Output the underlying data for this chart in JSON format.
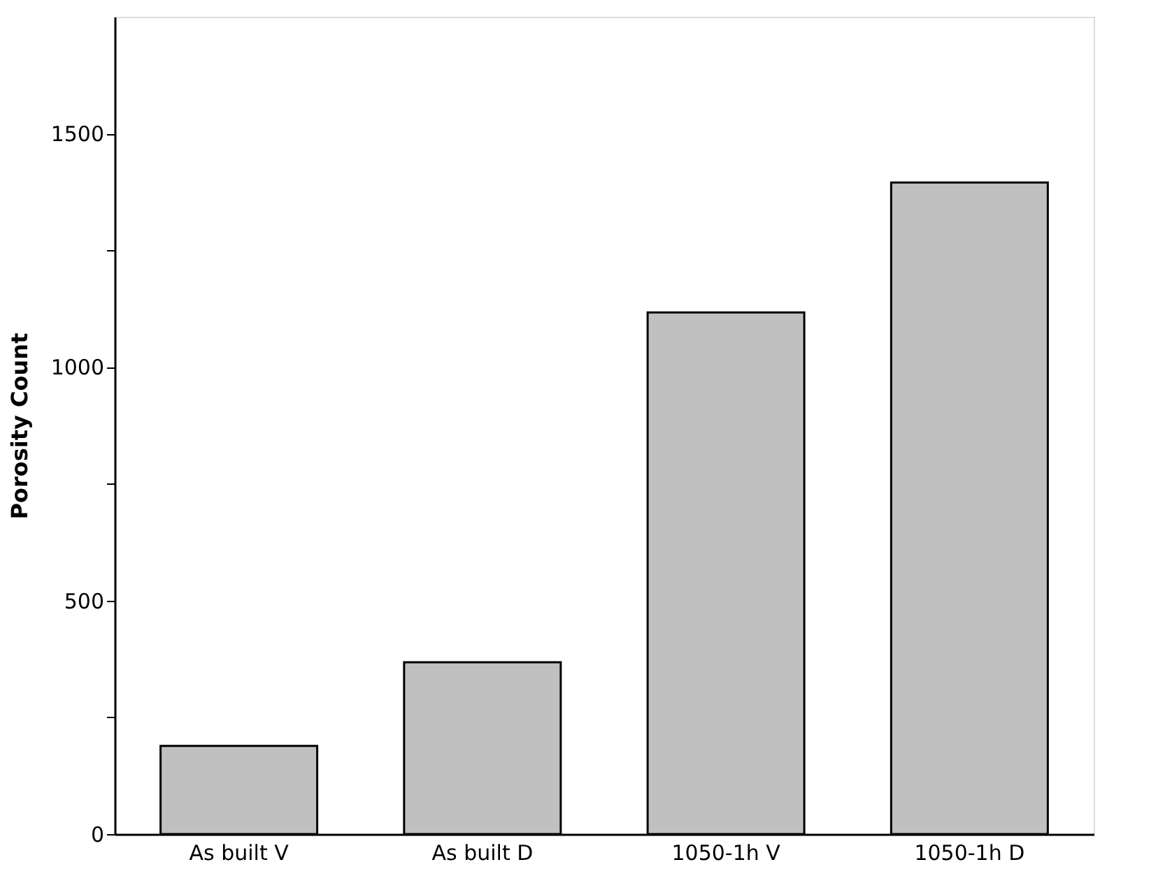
{
  "chart_data": {
    "type": "bar",
    "ylabel": "Porosity Count",
    "categories": [
      "As built V",
      "As built D",
      "1050-1h V",
      "1050-1h D"
    ],
    "values": [
      189,
      368,
      1117,
      1395
    ],
    "color": "#c0c0c0",
    "ylim": [
      0,
      1750
    ],
    "yticks": [
      0,
      {
        "value": 250,
        "label": null
      },
      500,
      {
        "value": 750,
        "label": null
      },
      1000,
      {
        "value": 1250,
        "label": null
      },
      1500
    ],
    "grid": false
  }
}
